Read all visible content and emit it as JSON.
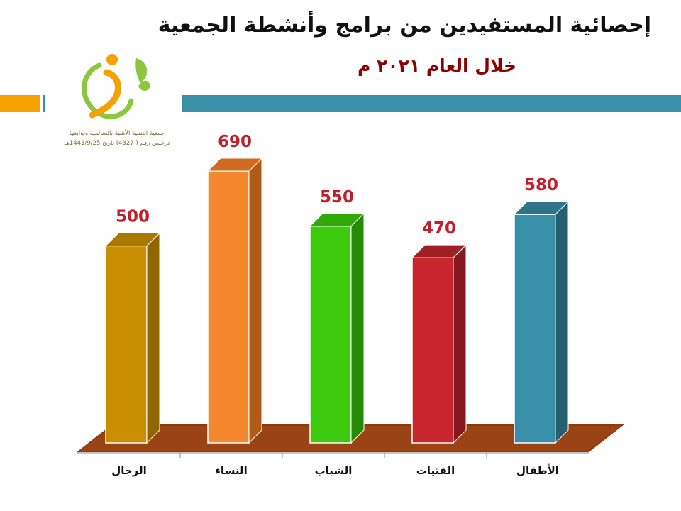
{
  "header": {
    "title": "إحصائية المستفيدين من برامج وأنشطة الجمعية",
    "subtitle": "خلال العام ٢٠٢١ م"
  },
  "logo": {
    "org_name": "جمعية التنمية الأهلية بالسالمية وتوابعها",
    "license": "ترخيص رقم ( 4327) تاريخ 1443/9/25هـ"
  },
  "colors": {
    "band_orange": "#f5a100",
    "band_teal": "#3a8fa8",
    "floor": "#8b3a10"
  },
  "chart_data": {
    "type": "bar",
    "title": "",
    "xlabel": "",
    "ylabel": "",
    "ylim": [
      0,
      800
    ],
    "grid": false,
    "legend": "none",
    "categories": [
      "الرجال",
      "النساء",
      "الشباب",
      "الفتيات",
      "الأطفال"
    ],
    "values": [
      500,
      690,
      550,
      470,
      580
    ],
    "colors": [
      {
        "front": "#c98f00",
        "side": "#8f6600",
        "top": "#a87800"
      },
      {
        "front": "#f5882e",
        "side": "#b25a18",
        "top": "#d06a20"
      },
      {
        "front": "#3cc90e",
        "side": "#278a06",
        "top": "#31a80a"
      },
      {
        "front": "#c8262e",
        "side": "#841a1e",
        "top": "#a01f24"
      },
      {
        "front": "#3a8fa8",
        "side": "#265f70",
        "top": "#2f7488"
      }
    ],
    "data_labels": [
      "500",
      "690",
      "550",
      "470",
      "580"
    ]
  }
}
